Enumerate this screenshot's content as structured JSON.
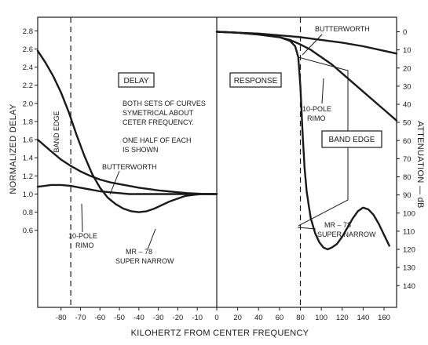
{
  "chart_data": [
    {
      "type": "line",
      "panel": "delay",
      "panel_label": "DELAY",
      "ylabel": "NORMALIZED DELAY",
      "x_ticks": [
        -80,
        -70,
        -60,
        -50,
        -40,
        -30,
        -20,
        -10
      ],
      "y_ticks": [
        0.6,
        0.8,
        1.0,
        1.2,
        1.4,
        1.6,
        1.8,
        2.0,
        2.2,
        2.4,
        2.6,
        2.8
      ],
      "xlim": [
        -92,
        0
      ],
      "ylim": [
        -0.25,
        2.95
      ],
      "grid": false,
      "annotations": [
        "BOTH SETS OF CURVES",
        "SYMETRICAL ABOUT",
        "CETER FREQUENCY.",
        "ONE HALF OF EACH",
        "IS SHOWN"
      ],
      "band_edge_label": "BAND EDGE",
      "band_edge_x": -75,
      "series": [
        {
          "name": "BUTTERWORTH",
          "x": [
            -92,
            -85,
            -80,
            -75,
            -70,
            -65,
            -60,
            -55,
            -50,
            -45,
            -40,
            -35,
            -30,
            -25,
            -20,
            -15,
            -10,
            -5,
            0
          ],
          "y": [
            1.6,
            1.47,
            1.38,
            1.31,
            1.25,
            1.2,
            1.16,
            1.13,
            1.11,
            1.09,
            1.07,
            1.055,
            1.04,
            1.03,
            1.02,
            1.01,
            1.005,
            1.0,
            1.0
          ]
        },
        {
          "name": "10-POLE RIMO",
          "x": [
            -92,
            -85,
            -80,
            -75,
            -70,
            -65,
            -60,
            -55,
            -50,
            -45,
            -40,
            -35,
            -30,
            -25,
            -20,
            -15,
            -10,
            -5,
            0
          ],
          "y": [
            1.08,
            1.1,
            1.1,
            1.09,
            1.07,
            1.05,
            1.03,
            1.02,
            1.01,
            1.0,
            1.0,
            1.0,
            1.0,
            1.0,
            1.0,
            1.0,
            1.0,
            1.0,
            1.0
          ]
        },
        {
          "name": "MR - 78 SUPER NARROW",
          "x": [
            -92,
            -88,
            -84,
            -80,
            -76,
            -72,
            -68,
            -64,
            -60,
            -56,
            -52,
            -48,
            -44,
            -40,
            -36,
            -32,
            -28,
            -24,
            -20,
            -16,
            -12,
            -8,
            -4,
            0
          ],
          "y": [
            2.58,
            2.45,
            2.3,
            2.12,
            1.9,
            1.65,
            1.42,
            1.22,
            1.07,
            0.96,
            0.89,
            0.84,
            0.81,
            0.8,
            0.81,
            0.84,
            0.88,
            0.92,
            0.95,
            0.98,
            0.99,
            1.0,
            1.0,
            1.0
          ]
        }
      ]
    },
    {
      "type": "line",
      "panel": "response",
      "panel_label": "RESPONSE",
      "ylabel": "ATTENUATION — dB",
      "x_ticks": [
        0,
        20,
        40,
        60,
        80,
        100,
        120,
        140,
        160
      ],
      "y_ticks": [
        0,
        10,
        20,
        30,
        40,
        50,
        60,
        70,
        80,
        90,
        100,
        110,
        120,
        130,
        140
      ],
      "xlim": [
        0,
        172
      ],
      "ylim": [
        -8,
        152
      ],
      "grid": false,
      "band_edge_label": "BAND EDGE",
      "band_edge_x": 80,
      "series": [
        {
          "name": "BUTTERWORTH",
          "x": [
            0,
            20,
            40,
            60,
            80,
            100,
            120,
            140,
            160,
            172
          ],
          "y": [
            0,
            0.5,
            1,
            2,
            3,
            4.5,
            6,
            8,
            10.5,
            12
          ]
        },
        {
          "name": "10-POLE RIMO",
          "x": [
            0,
            20,
            40,
            60,
            70,
            80,
            90,
            100,
            110,
            120,
            130,
            140,
            150,
            160,
            172
          ],
          "y": [
            0,
            0.5,
            1.5,
            3,
            4.5,
            7,
            10,
            14,
            18,
            23,
            28,
            33,
            38,
            43,
            49
          ]
        },
        {
          "name": "MR - 78 SUPER NARROW",
          "x": [
            0,
            20,
            40,
            60,
            70,
            75,
            78,
            80,
            82,
            84,
            86,
            88,
            90,
            94,
            98,
            102,
            106,
            110,
            115,
            120,
            125,
            130,
            135,
            140,
            145,
            150,
            155,
            160,
            165
          ],
          "y": [
            0,
            0.5,
            1.5,
            3,
            5,
            8,
            14,
            30,
            55,
            75,
            88,
            96,
            103,
            111,
            116,
            119,
            120,
            119,
            117,
            113,
            108,
            103,
            99,
            97,
            98,
            101,
            106,
            112,
            118
          ]
        }
      ]
    }
  ],
  "labels": {
    "xlabel": "KILOHERTZ FROM CENTER FREQUENCY",
    "butterworth_left": "BUTTERWORTH",
    "butterworth_right": "BUTTERWORTH",
    "rimo_left_1": "10-POLE",
    "rimo_left_2": "RIMO",
    "rimo_right_1": "10-POLE",
    "rimo_right_2": "RIMO",
    "mr78_left_1": "MR – 78",
    "mr78_left_2": "SUPER NARROW",
    "mr78_right_1": "MR – 78",
    "mr78_right_2": "SUPER NARROW"
  },
  "colors": {
    "ink": "#1a1a1a",
    "background": "#ffffff"
  }
}
